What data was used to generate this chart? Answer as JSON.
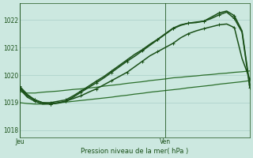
{
  "xlabel": "Pression niveau de la mer( hPa )",
  "bg_color": "#cce8e0",
  "grid_color": "#aacfc8",
  "ylim": [
    1017.75,
    1022.6
  ],
  "yticks": [
    1018,
    1019,
    1020,
    1021,
    1022
  ],
  "xlim": [
    0,
    30
  ],
  "jeu_x": 0,
  "ven_x": 19,
  "series": [
    {
      "y": [
        1019.4,
        1019.35,
        1019.35,
        1019.38,
        1019.4,
        1019.42,
        1019.45,
        1019.48,
        1019.5,
        1019.53,
        1019.56,
        1019.6,
        1019.63,
        1019.66,
        1019.7,
        1019.73,
        1019.76,
        1019.8,
        1019.83,
        1019.86,
        1019.9,
        1019.92,
        1019.95,
        1019.97,
        1020.0,
        1020.02,
        1020.05,
        1020.07,
        1020.1,
        1020.12,
        1020.15
      ],
      "color": "#2a6e2a",
      "lw": 0.9,
      "marker": null
    },
    {
      "y": [
        1019.0,
        1018.97,
        1018.95,
        1018.95,
        1018.97,
        1018.99,
        1019.02,
        1019.05,
        1019.08,
        1019.11,
        1019.14,
        1019.17,
        1019.2,
        1019.24,
        1019.27,
        1019.31,
        1019.34,
        1019.38,
        1019.41,
        1019.44,
        1019.47,
        1019.5,
        1019.54,
        1019.57,
        1019.6,
        1019.63,
        1019.67,
        1019.7,
        1019.73,
        1019.76,
        1019.8
      ],
      "color": "#2a6e2a",
      "lw": 0.9,
      "marker": null
    },
    {
      "y": [
        1019.5,
        1019.2,
        1019.05,
        1018.95,
        1018.95,
        1019.0,
        1019.05,
        1019.15,
        1019.25,
        1019.38,
        1019.5,
        1019.65,
        1019.8,
        1019.95,
        1020.1,
        1020.3,
        1020.5,
        1020.7,
        1020.85,
        1021.0,
        1021.15,
        1021.35,
        1021.5,
        1021.6,
        1021.68,
        1021.75,
        1021.82,
        1021.85,
        1021.72,
        1020.6,
        1019.85
      ],
      "color": "#1a5018",
      "lw": 1.1,
      "marker": "+"
    },
    {
      "y": [
        1019.55,
        1019.25,
        1019.1,
        1019.0,
        1019.0,
        1019.05,
        1019.1,
        1019.25,
        1019.42,
        1019.6,
        1019.78,
        1019.95,
        1020.15,
        1020.35,
        1020.55,
        1020.75,
        1020.92,
        1021.12,
        1021.3,
        1021.5,
        1021.7,
        1021.82,
        1021.88,
        1021.9,
        1021.95,
        1022.1,
        1022.25,
        1022.32,
        1022.15,
        1021.6,
        1019.65
      ],
      "color": "#1a5018",
      "lw": 1.1,
      "marker": "+"
    },
    {
      "y": [
        1019.6,
        1019.3,
        1019.1,
        1019.0,
        1018.95,
        1018.98,
        1019.05,
        1019.2,
        1019.38,
        1019.55,
        1019.72,
        1019.9,
        1020.1,
        1020.3,
        1020.5,
        1020.68,
        1020.88,
        1021.08,
        1021.28,
        1021.48,
        1021.68,
        1021.8,
        1021.88,
        1021.92,
        1021.95,
        1022.05,
        1022.18,
        1022.28,
        1022.05,
        1021.55,
        1019.55
      ],
      "color": "#1a5018",
      "lw": 1.1,
      "marker": "+"
    }
  ]
}
